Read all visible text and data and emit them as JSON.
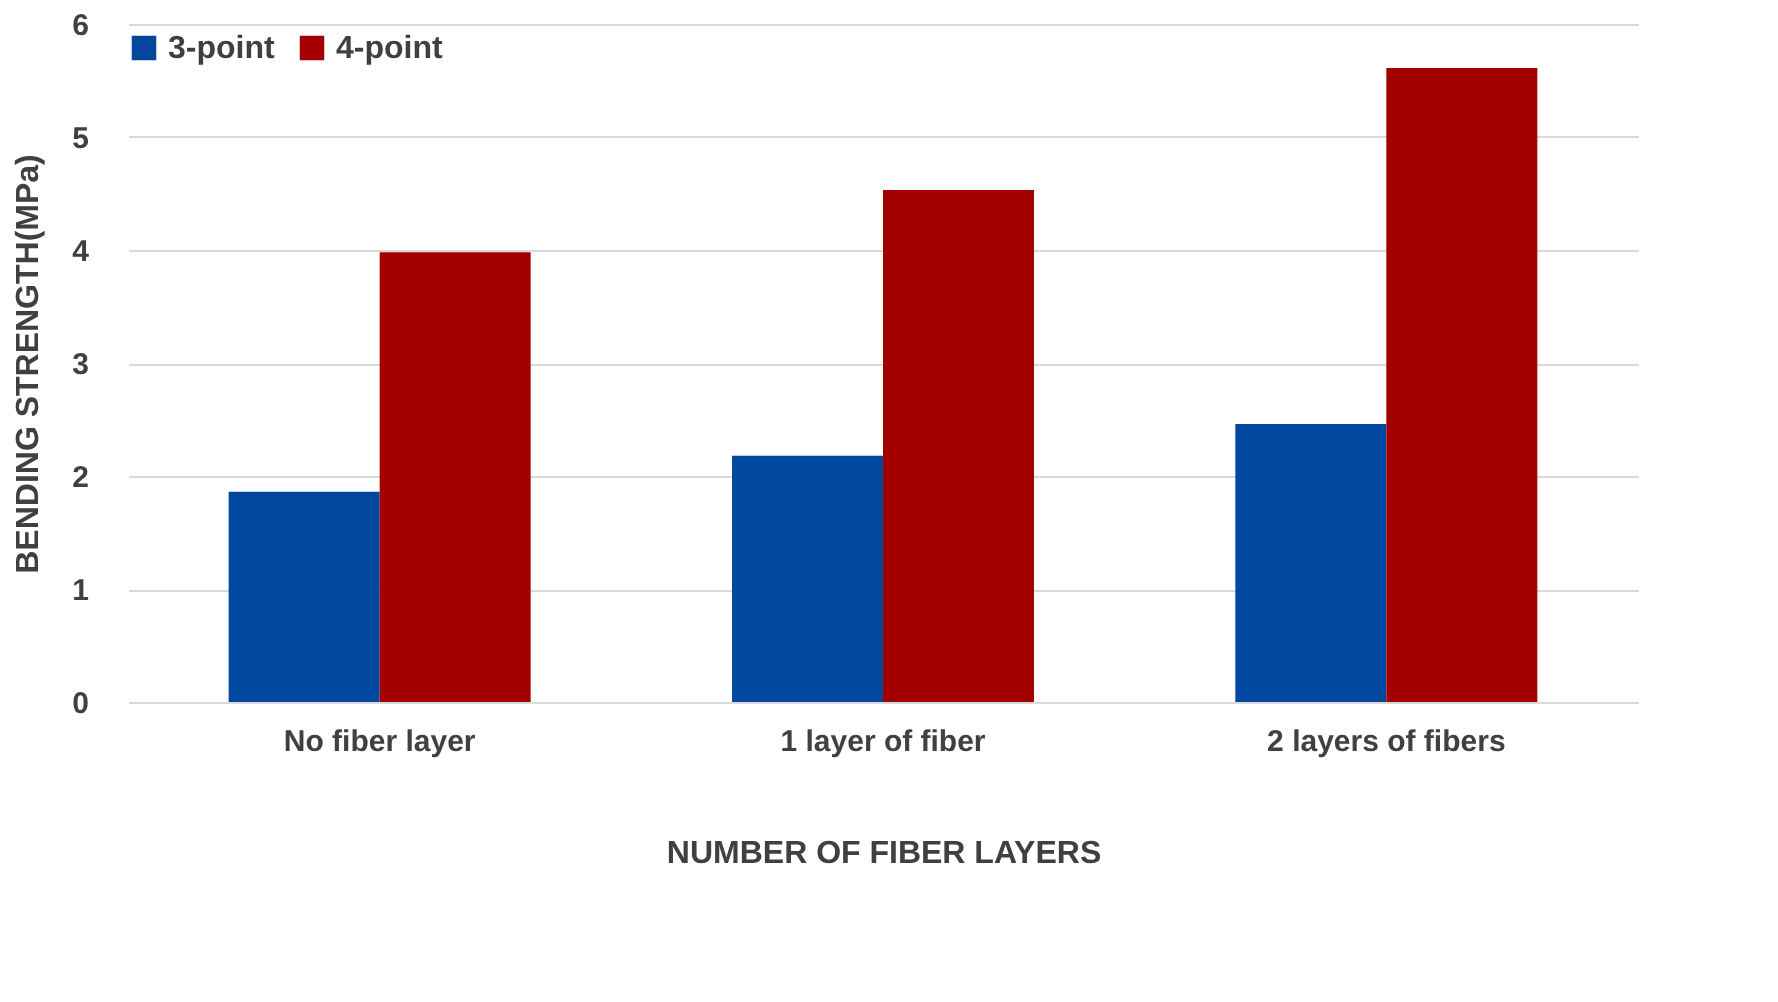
{
  "chart_data": {
    "type": "bar",
    "xlabel": "NUMBER OF FIBER LAYERS",
    "ylabel": "BENDING STRENGTH(MPa)",
    "categories": [
      "No fiber layer",
      "1 layer of fiber",
      "2 layers of fibers"
    ],
    "series": [
      {
        "name": "3-point",
        "color": "#0047a0",
        "values": [
          1.86,
          2.18,
          2.46
        ]
      },
      {
        "name": "4-point",
        "color": "#a50000",
        "values": [
          3.98,
          4.53,
          5.61
        ]
      }
    ],
    "ylim": [
      0,
      6
    ],
    "yticks": [
      0,
      1,
      2,
      3,
      4,
      5,
      6
    ],
    "grid": "y",
    "legend": "top"
  }
}
